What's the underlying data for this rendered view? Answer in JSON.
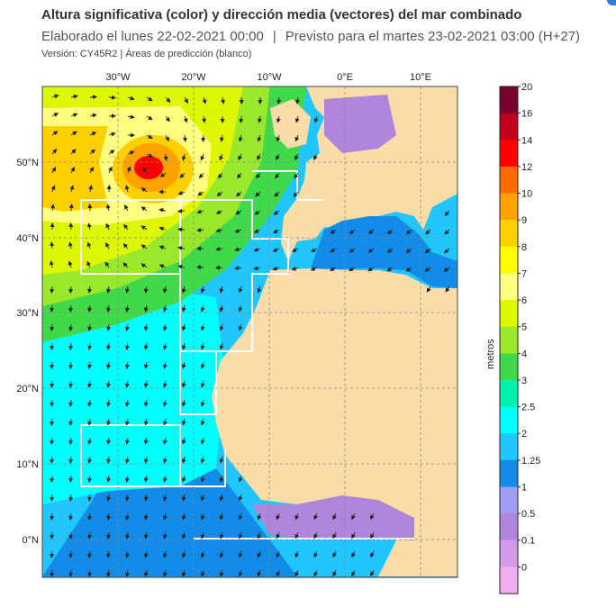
{
  "header": {
    "title": "Altura significativa (color) y dirección media (vectores) del mar combinado",
    "elaborated": "Elaborado el lunes 22-02-2021 00:00",
    "separator": "|",
    "forecast": "Previsto para el martes 23-02-2021 03:00 (H+27)",
    "version": "Versión: CY45R2 |  Áreas de predicción (blanco)"
  },
  "map": {
    "lon_labels": [
      "30°W",
      "20°W",
      "10°W",
      "0°E",
      "10°E"
    ],
    "lat_labels": [
      "50°N",
      "40°N",
      "30°N",
      "20°N",
      "10°N",
      "0°N"
    ],
    "land_color": "#fadca8",
    "border_color": "#555555",
    "grid_color": "#888888"
  },
  "colorbar": {
    "unit": "metros",
    "levels": [
      "20",
      "16",
      "14",
      "12",
      "10",
      "9",
      "8",
      "7",
      "6",
      "5",
      "4",
      "3",
      "2.5",
      "2",
      "1.25",
      "1",
      "0.5",
      "0.1",
      "0"
    ],
    "colors": [
      "#7a0030",
      "#c0001c",
      "#ff0000",
      "#ff6a00",
      "#ffa200",
      "#ffd000",
      "#ffff00",
      "#ffff80",
      "#ddf700",
      "#99e82c",
      "#3fd94a",
      "#00f0b0",
      "#00ffff",
      "#22c6ff",
      "#128ce8",
      "#9e9ef5",
      "#b086dc",
      "#d49ae8",
      "#f0b0f0"
    ]
  }
}
